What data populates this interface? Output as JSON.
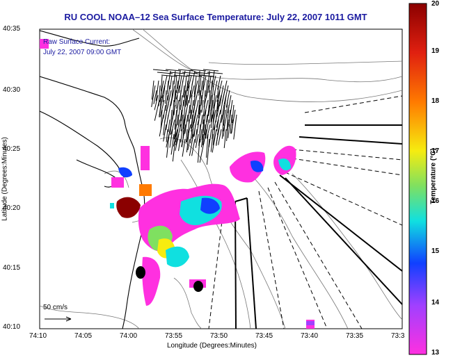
{
  "title": "RU COOL  NOAA–12  Sea Surface Temperature:  July 22, 2007 1011 GMT",
  "annotation": {
    "line1": "Raw Surface Current:",
    "line2": "July 22, 2007 09:00 GMT"
  },
  "scale": {
    "label": "50 cm/s"
  },
  "axes": {
    "xlabel": "Longitude (Degrees:Minutes)",
    "ylabel": "Latitude (Degrees:Minutes)",
    "xticks": [
      "74:10",
      "74:05",
      "74:00",
      "73:55",
      "73:50",
      "73:45",
      "73:40",
      "73:35",
      "73:3"
    ],
    "yticks": [
      "40:35",
      "40:30",
      "40:25",
      "40:20",
      "40:15",
      "40:10"
    ]
  },
  "colorbar": {
    "label": "Temperature (°C)",
    "ticks": [
      "20",
      "19",
      "18",
      "17",
      "16",
      "15",
      "14",
      "13"
    ],
    "colors": [
      "#8b0000",
      "#e02010",
      "#ff7a00",
      "#f6ec10",
      "#7fe060",
      "#10e0e0",
      "#1040ff",
      "#a040ff",
      "#ff30e0"
    ]
  },
  "colors": {
    "land": "#ffffff",
    "water": "#ffffff",
    "title": "#1a1aa0"
  }
}
